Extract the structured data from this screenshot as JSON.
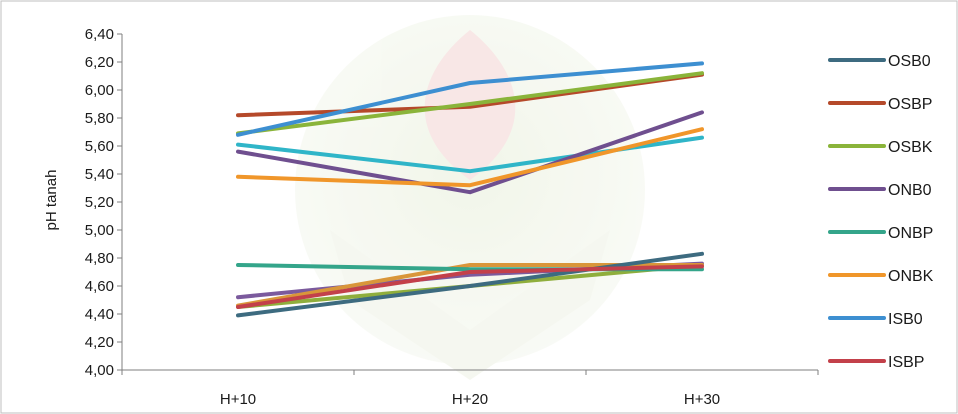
{
  "chart_data": {
    "type": "line",
    "title": "",
    "xlabel": "",
    "ylabel": "pH tanah",
    "categories": [
      "H+10",
      "H+20",
      "H+30"
    ],
    "ylim": [
      4.0,
      6.4
    ],
    "yticks": [
      "4,00",
      "4,20",
      "4,40",
      "4,60",
      "4,80",
      "5,00",
      "5,20",
      "5,40",
      "5,60",
      "5,80",
      "6,00",
      "6,20",
      "6,40"
    ],
    "grid": false,
    "legend_position": "right",
    "series": [
      {
        "name": "OSB0",
        "color": "#3d6b80",
        "values": [
          4.39,
          4.6,
          4.83
        ]
      },
      {
        "name": "OSBP",
        "color": "#b5492a",
        "values": [
          5.82,
          5.88,
          6.11
        ]
      },
      {
        "name": "OSBK",
        "color": "#8ab43a",
        "values": [
          5.69,
          5.9,
          6.12
        ]
      },
      {
        "name": "ONB0",
        "color": "#6f4f8f",
        "values": [
          5.56,
          5.27,
          5.84
        ]
      },
      {
        "name": "ONBP",
        "color": "#34a58a",
        "values": [
          4.75,
          4.72,
          4.72
        ]
      },
      {
        "name": "ONBK",
        "color": "#f0962a",
        "values": [
          5.38,
          5.32,
          5.72
        ]
      },
      {
        "name": "ISB0",
        "color": "#3d8fd1",
        "values": [
          5.68,
          6.05,
          6.19
        ]
      },
      {
        "name": "ISBP",
        "color": "#c3404a",
        "values": [
          4.45,
          4.7,
          4.74
        ]
      }
    ],
    "extra_series_without_legend": [
      {
        "color": "#8fae3c",
        "values": [
          4.45,
          4.6,
          4.75
        ]
      },
      {
        "color": "#7b5a9d",
        "values": [
          4.52,
          4.68,
          4.76
        ]
      },
      {
        "color": "#2fb5c8",
        "values": [
          5.61,
          5.42,
          5.66
        ]
      },
      {
        "color": "#d9963a",
        "values": [
          4.46,
          4.75,
          4.75
        ]
      }
    ]
  }
}
